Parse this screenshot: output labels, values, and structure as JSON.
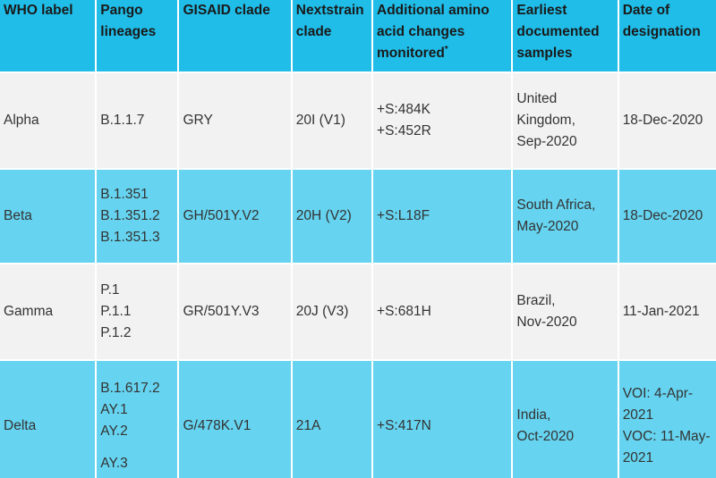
{
  "table": {
    "header": [
      {
        "text": "WHO label"
      },
      {
        "text": "Pango lineages"
      },
      {
        "text": "GISAID clade"
      },
      {
        "text": "Nextstrain clade"
      },
      {
        "text": "Additional amino acid changes monitored",
        "sup": "*"
      },
      {
        "text": "Earliest documented samples"
      },
      {
        "text": "Date of designation"
      }
    ],
    "rows": [
      [
        [
          "Alpha"
        ],
        [
          "B.1.1.7"
        ],
        [
          "GRY"
        ],
        [
          "20I (V1)"
        ],
        [
          "+S:484K",
          "+S:452R"
        ],
        [
          "United Kingdom,",
          "Sep-2020"
        ],
        [
          "18-Dec-2020"
        ]
      ],
      [
        [
          "Beta"
        ],
        [
          "B.1.351",
          "B.1.351.2",
          "B.1.351.3"
        ],
        [
          "GH/501Y.V2"
        ],
        [
          "20H (V2)"
        ],
        [
          "+S:L18F"
        ],
        [
          "South Africa,",
          "May-2020"
        ],
        [
          "18-Dec-2020"
        ]
      ],
      [
        [
          "Gamma"
        ],
        [
          "P.1",
          "P.1.1",
          "P.1.2"
        ],
        [
          "GR/501Y.V3"
        ],
        [
          "20J (V3)"
        ],
        [
          "+S:681H"
        ],
        [
          "Brazil,",
          "Nov-2020"
        ],
        [
          "11-Jan-2021"
        ]
      ],
      [
        [
          "Delta"
        ],
        [
          "B.1.617.2",
          "AY.1",
          "AY.2",
          "AY.3"
        ],
        [
          "G/478K.V1"
        ],
        [
          "21A"
        ],
        [
          "+S:417N"
        ],
        [
          "India,",
          "Oct-2020"
        ],
        [
          "VOI: 4-Apr-2021",
          "VOC: 11-May-2021"
        ]
      ]
    ]
  }
}
